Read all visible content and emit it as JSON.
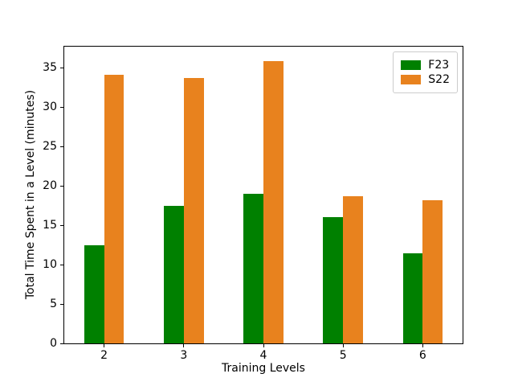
{
  "chart_data": {
    "type": "bar",
    "title": "",
    "xlabel": "Training Levels",
    "ylabel": "Total Time Spent in a Level (minutes)",
    "categories": [
      2,
      3,
      4,
      5,
      6
    ],
    "series": [
      {
        "name": "F23",
        "color": "#008000",
        "values": [
          12.5,
          17.5,
          19.0,
          16.0,
          11.4
        ]
      },
      {
        "name": "S22",
        "color": "#e8821e",
        "values": [
          34.1,
          33.7,
          35.9,
          18.7,
          18.2
        ]
      }
    ],
    "bar_width": 0.25,
    "xlim": [
      1.5,
      6.5
    ],
    "ylim": [
      0,
      37.7
    ],
    "yticks": [
      0,
      5,
      10,
      15,
      20,
      25,
      30,
      35
    ],
    "grid": false,
    "legend_position": "upper right",
    "spine_color": "#000000",
    "background_color": "#ffffff"
  }
}
